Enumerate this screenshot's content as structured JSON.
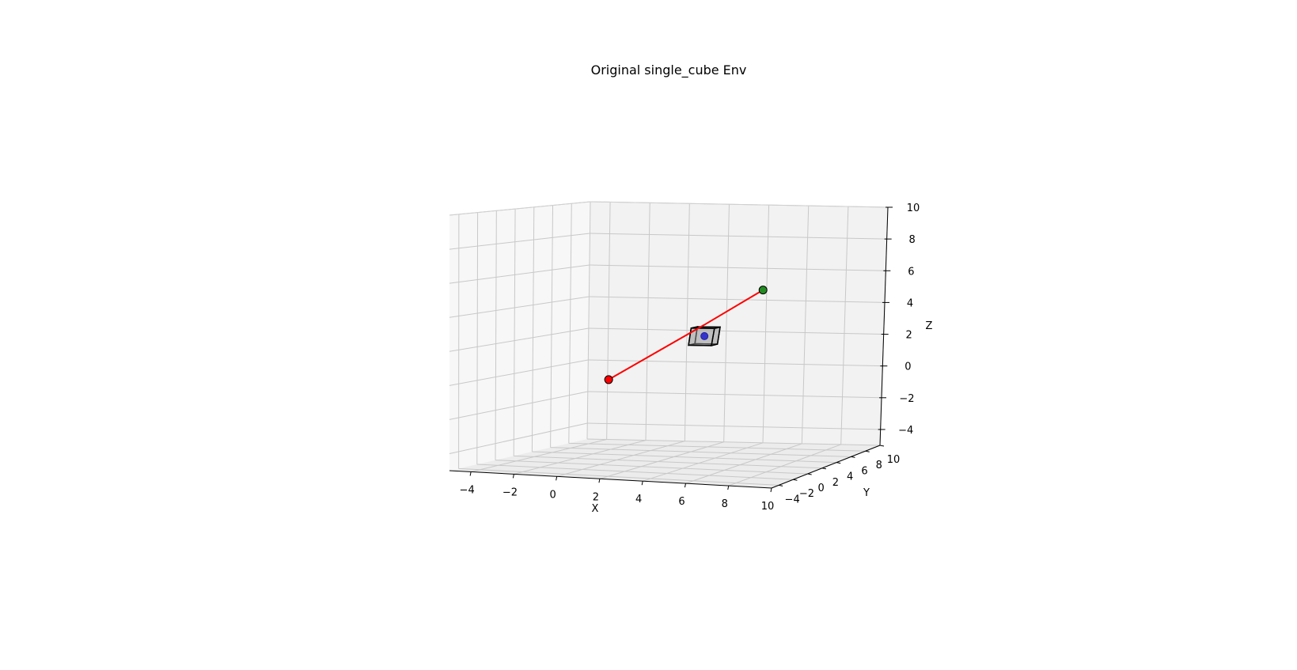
{
  "chart_data": {
    "type": "scatter",
    "projection": "3d",
    "title": "Original single_cube Env",
    "xlabel": "X",
    "ylabel": "Y",
    "zlabel": "Z",
    "xlim": [
      -5,
      10
    ],
    "ylim": [
      -5,
      10
    ],
    "zlim": [
      -5,
      10
    ],
    "x_ticks": [
      -4,
      -2,
      0,
      2,
      4,
      6,
      8,
      10
    ],
    "y_ticks": [
      -4,
      -2,
      0,
      2,
      4,
      6,
      8,
      10
    ],
    "z_ticks": [
      -4,
      -2,
      0,
      2,
      4,
      6,
      8,
      10
    ],
    "x_tick_labels": [
      "−4",
      "−2",
      "0",
      "2",
      "4",
      "6",
      "8",
      "10"
    ],
    "y_tick_labels": [
      "−4",
      "−2",
      "0",
      "2",
      "4",
      "6",
      "8",
      "10"
    ],
    "z_tick_labels": [
      "−4",
      "−2",
      "0",
      "2",
      "4",
      "6",
      "8",
      "10"
    ],
    "grid": true,
    "path": {
      "color": "#ff0000",
      "points": [
        [
          0,
          0,
          0
        ],
        [
          3,
          3,
          3
        ],
        [
          5,
          5,
          5
        ]
      ]
    },
    "start": {
      "point": [
        0,
        0,
        0
      ],
      "color": "#ff0000"
    },
    "goal": {
      "point": [
        5,
        5,
        5
      ],
      "color": "#228b22"
    },
    "obstacle": {
      "type": "cube",
      "center": [
        3.5,
        1.5,
        2.5
      ],
      "size": 1,
      "face_color": "#a9a9a9",
      "center_marker_color": "#3333cc"
    }
  }
}
